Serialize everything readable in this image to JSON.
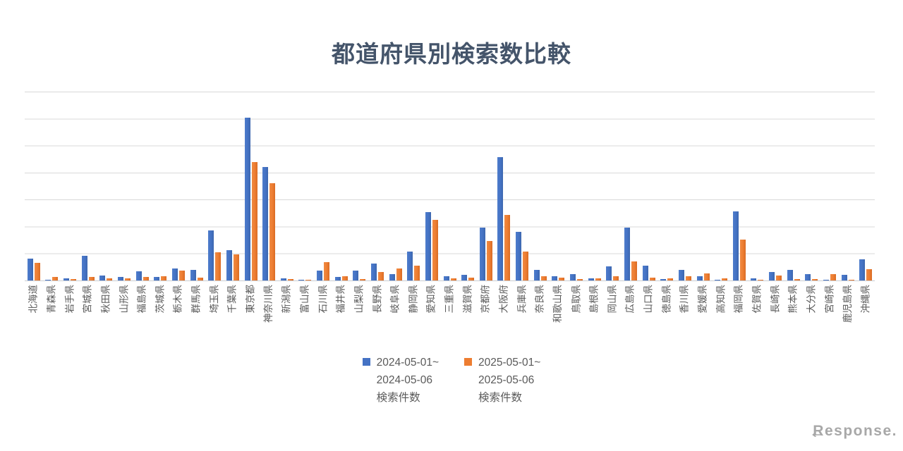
{
  "title": "都道府県別検索数比較",
  "watermark": "Response.",
  "colors": {
    "series_2024": "#4472C4",
    "series_2025": "#ED7D31",
    "title_text": "#44546A",
    "axis_text": "#595959",
    "gridline": "#D9D9D9"
  },
  "legend": [
    {
      "color": "#4472C4",
      "label_lines": [
        "2024-05-01~",
        "2024-05-06",
        "検索件数"
      ]
    },
    {
      "color": "#ED7D31",
      "label_lines": [
        "2025-05-01~",
        "2025-05-06",
        "検索件数"
      ]
    }
  ],
  "chart_data": {
    "type": "bar",
    "title": "都道府県別検索数比較",
    "xlabel": "",
    "ylabel": "",
    "y_axis": {
      "tick_labels_visible": false,
      "gridline_count": 8,
      "ylim_units": [
        0,
        7
      ],
      "note": "No numeric y labels are shown in the image; values below are estimated in gridline units (1.0 = one gridline interval)."
    },
    "legend_position": "bottom-center",
    "x_tick_label_rotation_deg": -90,
    "categories": [
      "北海道",
      "青森県",
      "岩手県",
      "宮城県",
      "秋田県",
      "山形県",
      "福島県",
      "茨城県",
      "栃木県",
      "群馬県",
      "埼玉県",
      "千葉県",
      "東京都",
      "神奈川県",
      "新潟県",
      "富山県",
      "石川県",
      "福井県",
      "山梨県",
      "長野県",
      "岐阜県",
      "静岡県",
      "愛知県",
      "三重県",
      "滋賀県",
      "京都府",
      "大阪府",
      "兵庫県",
      "奈良県",
      "和歌山県",
      "鳥取県",
      "島根県",
      "岡山県",
      "広島県",
      "山口県",
      "徳島県",
      "香川県",
      "愛媛県",
      "高知県",
      "福岡県",
      "佐賀県",
      "長崎県",
      "熊本県",
      "大分県",
      "宮崎県",
      "鹿児島県",
      "沖縄県"
    ],
    "series": [
      {
        "name": "2024-05-01~ 2024-05-06 検索件数",
        "color": "#4472C4",
        "values": [
          0.81,
          0.03,
          0.08,
          0.91,
          0.18,
          0.13,
          0.34,
          0.13,
          0.44,
          0.39,
          1.85,
          1.13,
          6.03,
          4.2,
          0.08,
          0.03,
          0.37,
          0.13,
          0.37,
          0.63,
          0.23,
          1.07,
          2.53,
          0.16,
          0.21,
          1.96,
          4.57,
          1.8,
          0.39,
          0.16,
          0.23,
          0.08,
          0.52,
          1.96,
          0.55,
          0.05,
          0.39,
          0.16,
          0.03,
          2.56,
          0.08,
          0.31,
          0.39,
          0.23,
          0.03,
          0.21,
          0.78
        ]
      },
      {
        "name": "2025-05-01~ 2025-05-06 検索件数",
        "color": "#ED7D31",
        "values": [
          0.65,
          0.13,
          0.05,
          0.13,
          0.08,
          0.08,
          0.13,
          0.16,
          0.37,
          0.1,
          1.04,
          0.96,
          4.39,
          3.6,
          0.05,
          0.03,
          0.68,
          0.16,
          0.05,
          0.31,
          0.44,
          0.55,
          2.25,
          0.08,
          0.1,
          1.46,
          2.43,
          1.07,
          0.16,
          0.1,
          0.05,
          0.08,
          0.16,
          0.7,
          0.1,
          0.08,
          0.16,
          0.26,
          0.08,
          1.51,
          0.03,
          0.18,
          0.05,
          0.05,
          0.23,
          0.03,
          0.42
        ]
      }
    ]
  }
}
